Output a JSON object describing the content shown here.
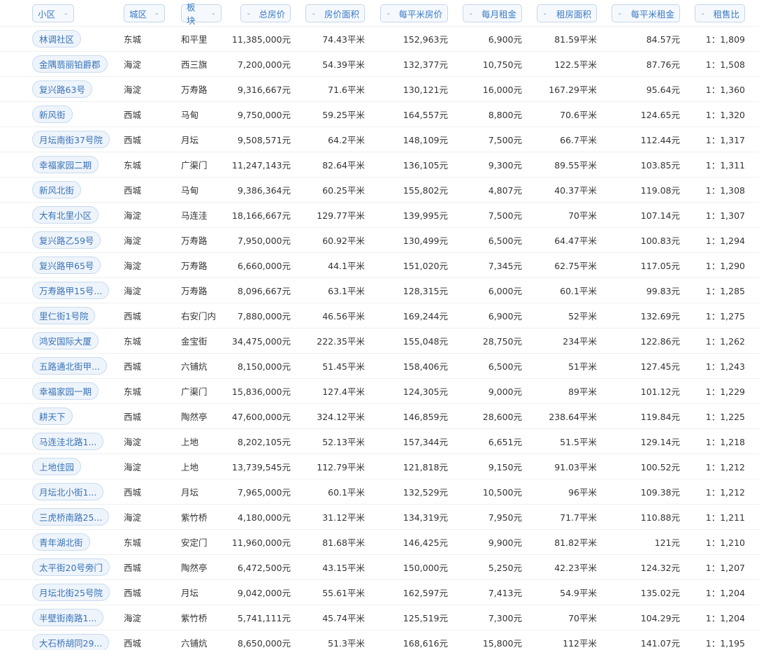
{
  "headers": {
    "community": "小区",
    "district": "城区",
    "block": "板块",
    "total_price": "总房价",
    "house_area": "房价面积",
    "price_per_sqm": "每平米房价",
    "monthly_rent": "每月租金",
    "rent_area": "租房面积",
    "rent_per_sqm": "每平米租金",
    "rent_sale_ratio": "租售比"
  },
  "rows": [
    {
      "community": "林调社区",
      "district": "东城",
      "block": "和平里",
      "total_price": "11,385,000元",
      "house_area": "74.43平米",
      "price_per_sqm": "152,963元",
      "monthly_rent": "6,900元",
      "rent_area": "81.59平米",
      "rent_per_sqm": "84.57元",
      "ratio": "1：1,809"
    },
    {
      "community": "金隅翡丽铂爵郡",
      "district": "海淀",
      "block": "西三旗",
      "total_price": "7,200,000元",
      "house_area": "54.39平米",
      "price_per_sqm": "132,377元",
      "monthly_rent": "10,750元",
      "rent_area": "122.5平米",
      "rent_per_sqm": "87.76元",
      "ratio": "1：1,508"
    },
    {
      "community": "复兴路63号",
      "district": "海淀",
      "block": "万寿路",
      "total_price": "9,316,667元",
      "house_area": "71.6平米",
      "price_per_sqm": "130,121元",
      "monthly_rent": "16,000元",
      "rent_area": "167.29平米",
      "rent_per_sqm": "95.64元",
      "ratio": "1：1,360"
    },
    {
      "community": "新风街",
      "district": "西城",
      "block": "马甸",
      "total_price": "9,750,000元",
      "house_area": "59.25平米",
      "price_per_sqm": "164,557元",
      "monthly_rent": "8,800元",
      "rent_area": "70.6平米",
      "rent_per_sqm": "124.65元",
      "ratio": "1：1,320"
    },
    {
      "community": "月坛南街37号院",
      "district": "西城",
      "block": "月坛",
      "total_price": "9,508,571元",
      "house_area": "64.2平米",
      "price_per_sqm": "148,109元",
      "monthly_rent": "7,500元",
      "rent_area": "66.7平米",
      "rent_per_sqm": "112.44元",
      "ratio": "1：1,317"
    },
    {
      "community": "幸福家园二期",
      "district": "东城",
      "block": "广渠门",
      "total_price": "11,247,143元",
      "house_area": "82.64平米",
      "price_per_sqm": "136,105元",
      "monthly_rent": "9,300元",
      "rent_area": "89.55平米",
      "rent_per_sqm": "103.85元",
      "ratio": "1：1,311"
    },
    {
      "community": "新风北街",
      "district": "西城",
      "block": "马甸",
      "total_price": "9,386,364元",
      "house_area": "60.25平米",
      "price_per_sqm": "155,802元",
      "monthly_rent": "4,807元",
      "rent_area": "40.37平米",
      "rent_per_sqm": "119.08元",
      "ratio": "1：1,308"
    },
    {
      "community": "大有北里小区",
      "district": "海淀",
      "block": "马连洼",
      "total_price": "18,166,667元",
      "house_area": "129.77平米",
      "price_per_sqm": "139,995元",
      "monthly_rent": "7,500元",
      "rent_area": "70平米",
      "rent_per_sqm": "107.14元",
      "ratio": "1：1,307"
    },
    {
      "community": "复兴路乙59号",
      "district": "海淀",
      "block": "万寿路",
      "total_price": "7,950,000元",
      "house_area": "60.92平米",
      "price_per_sqm": "130,499元",
      "monthly_rent": "6,500元",
      "rent_area": "64.47平米",
      "rent_per_sqm": "100.83元",
      "ratio": "1：1,294"
    },
    {
      "community": "复兴路甲65号",
      "district": "海淀",
      "block": "万寿路",
      "total_price": "6,660,000元",
      "house_area": "44.1平米",
      "price_per_sqm": "151,020元",
      "monthly_rent": "7,345元",
      "rent_area": "62.75平米",
      "rent_per_sqm": "117.05元",
      "ratio": "1：1,290"
    },
    {
      "community": "万寿路甲15号...",
      "district": "海淀",
      "block": "万寿路",
      "total_price": "8,096,667元",
      "house_area": "63.1平米",
      "price_per_sqm": "128,315元",
      "monthly_rent": "6,000元",
      "rent_area": "60.1平米",
      "rent_per_sqm": "99.83元",
      "ratio": "1：1,285"
    },
    {
      "community": "里仁街1号院",
      "district": "西城",
      "block": "右安门内",
      "total_price": "7,880,000元",
      "house_area": "46.56平米",
      "price_per_sqm": "169,244元",
      "monthly_rent": "6,900元",
      "rent_area": "52平米",
      "rent_per_sqm": "132.69元",
      "ratio": "1：1,275"
    },
    {
      "community": "鸿安国际大厦",
      "district": "东城",
      "block": "金宝街",
      "total_price": "34,475,000元",
      "house_area": "222.35平米",
      "price_per_sqm": "155,048元",
      "monthly_rent": "28,750元",
      "rent_area": "234平米",
      "rent_per_sqm": "122.86元",
      "ratio": "1：1,262"
    },
    {
      "community": "五路通北街甲...",
      "district": "西城",
      "block": "六铺炕",
      "total_price": "8,150,000元",
      "house_area": "51.45平米",
      "price_per_sqm": "158,406元",
      "monthly_rent": "6,500元",
      "rent_area": "51平米",
      "rent_per_sqm": "127.45元",
      "ratio": "1：1,243"
    },
    {
      "community": "幸福家园一期",
      "district": "东城",
      "block": "广渠门",
      "total_price": "15,836,000元",
      "house_area": "127.4平米",
      "price_per_sqm": "124,305元",
      "monthly_rent": "9,000元",
      "rent_area": "89平米",
      "rent_per_sqm": "101.12元",
      "ratio": "1：1,229"
    },
    {
      "community": "耕天下",
      "district": "西城",
      "block": "陶然亭",
      "total_price": "47,600,000元",
      "house_area": "324.12平米",
      "price_per_sqm": "146,859元",
      "monthly_rent": "28,600元",
      "rent_area": "238.64平米",
      "rent_per_sqm": "119.84元",
      "ratio": "1：1,225"
    },
    {
      "community": "马连洼北路1...",
      "district": "海淀",
      "block": "上地",
      "total_price": "8,202,105元",
      "house_area": "52.13平米",
      "price_per_sqm": "157,344元",
      "monthly_rent": "6,651元",
      "rent_area": "51.5平米",
      "rent_per_sqm": "129.14元",
      "ratio": "1：1,218"
    },
    {
      "community": "上地佳园",
      "district": "海淀",
      "block": "上地",
      "total_price": "13,739,545元",
      "house_area": "112.79平米",
      "price_per_sqm": "121,818元",
      "monthly_rent": "9,150元",
      "rent_area": "91.03平米",
      "rent_per_sqm": "100.52元",
      "ratio": "1：1,212"
    },
    {
      "community": "月坛北小街1...",
      "district": "西城",
      "block": "月坛",
      "total_price": "7,965,000元",
      "house_area": "60.1平米",
      "price_per_sqm": "132,529元",
      "monthly_rent": "10,500元",
      "rent_area": "96平米",
      "rent_per_sqm": "109.38元",
      "ratio": "1：1,212"
    },
    {
      "community": "三虎桥南路25...",
      "district": "海淀",
      "block": "紫竹桥",
      "total_price": "4,180,000元",
      "house_area": "31.12平米",
      "price_per_sqm": "134,319元",
      "monthly_rent": "7,950元",
      "rent_area": "71.7平米",
      "rent_per_sqm": "110.88元",
      "ratio": "1：1,211"
    },
    {
      "community": "青年湖北街",
      "district": "东城",
      "block": "安定门",
      "total_price": "11,960,000元",
      "house_area": "81.68平米",
      "price_per_sqm": "146,425元",
      "monthly_rent": "9,900元",
      "rent_area": "81.82平米",
      "rent_per_sqm": "121元",
      "ratio": "1：1,210"
    },
    {
      "community": "太平街20号旁门",
      "district": "西城",
      "block": "陶然亭",
      "total_price": "6,472,500元",
      "house_area": "43.15平米",
      "price_per_sqm": "150,000元",
      "monthly_rent": "5,250元",
      "rent_area": "42.23平米",
      "rent_per_sqm": "124.32元",
      "ratio": "1：1,207"
    },
    {
      "community": "月坛北街25号院",
      "district": "西城",
      "block": "月坛",
      "total_price": "9,042,000元",
      "house_area": "55.61平米",
      "price_per_sqm": "162,597元",
      "monthly_rent": "7,413元",
      "rent_area": "54.9平米",
      "rent_per_sqm": "135.02元",
      "ratio": "1：1,204"
    },
    {
      "community": "半壁街南路1...",
      "district": "海淀",
      "block": "紫竹桥",
      "total_price": "5,741,111元",
      "house_area": "45.74平米",
      "price_per_sqm": "125,519元",
      "monthly_rent": "7,300元",
      "rent_area": "70平米",
      "rent_per_sqm": "104.29元",
      "ratio": "1：1,204"
    },
    {
      "community": "大石桥胡同29...",
      "district": "西城",
      "block": "六铺炕",
      "total_price": "8,650,000元",
      "house_area": "51.3平米",
      "price_per_sqm": "168,616元",
      "monthly_rent": "15,800元",
      "rent_area": "112平米",
      "rent_per_sqm": "141.07元",
      "ratio": "1：1,195"
    }
  ]
}
